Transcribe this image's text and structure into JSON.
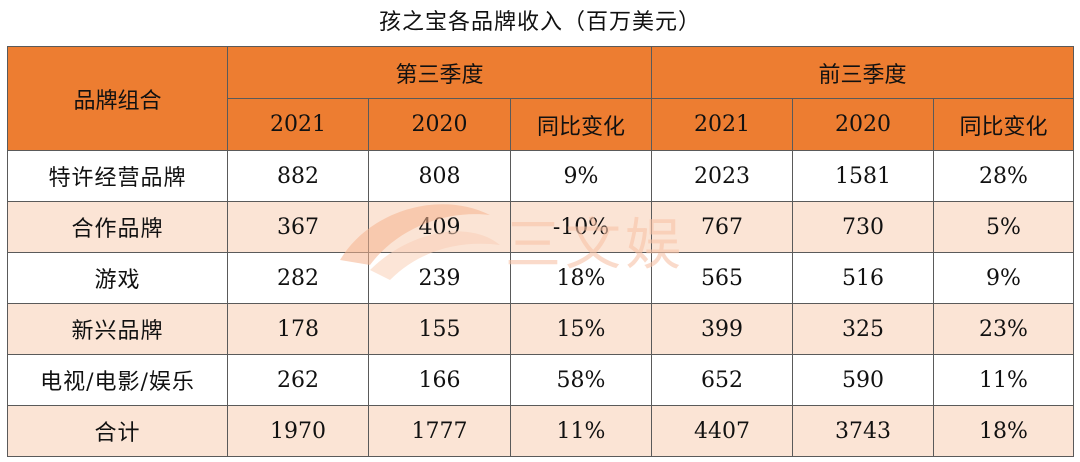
{
  "chart_data": {
    "type": "table",
    "title": "孩之宝各品牌收入（百万美元）",
    "row_header": "品牌组合",
    "groups": [
      {
        "label": "第三季度",
        "columns": [
          "2021",
          "2020",
          "同比变化"
        ]
      },
      {
        "label": "前三季度",
        "columns": [
          "2021",
          "2020",
          "同比变化"
        ]
      }
    ],
    "rows": [
      {
        "label": "特许经营品牌",
        "values": [
          "882",
          "808",
          "9%",
          "2023",
          "1581",
          "28%"
        ]
      },
      {
        "label": "合作品牌",
        "values": [
          "367",
          "409",
          "-10%",
          "767",
          "730",
          "5%"
        ]
      },
      {
        "label": "游戏",
        "values": [
          "282",
          "239",
          "18%",
          "565",
          "516",
          "9%"
        ]
      },
      {
        "label": "新兴品牌",
        "values": [
          "178",
          "155",
          "15%",
          "399",
          "325",
          "23%"
        ]
      },
      {
        "label": "电视/电影/娱乐",
        "values": [
          "262",
          "166",
          "58%",
          "652",
          "590",
          "11%"
        ]
      },
      {
        "label": "合计",
        "values": [
          "1970",
          "1777",
          "11%",
          "4407",
          "3743",
          "18%"
        ]
      }
    ]
  },
  "watermark": {
    "text": "三文娱"
  },
  "colors": {
    "header_fill": "#ed7d31",
    "band_fill": "#fbe4d5",
    "border": "#5a5a5a"
  }
}
